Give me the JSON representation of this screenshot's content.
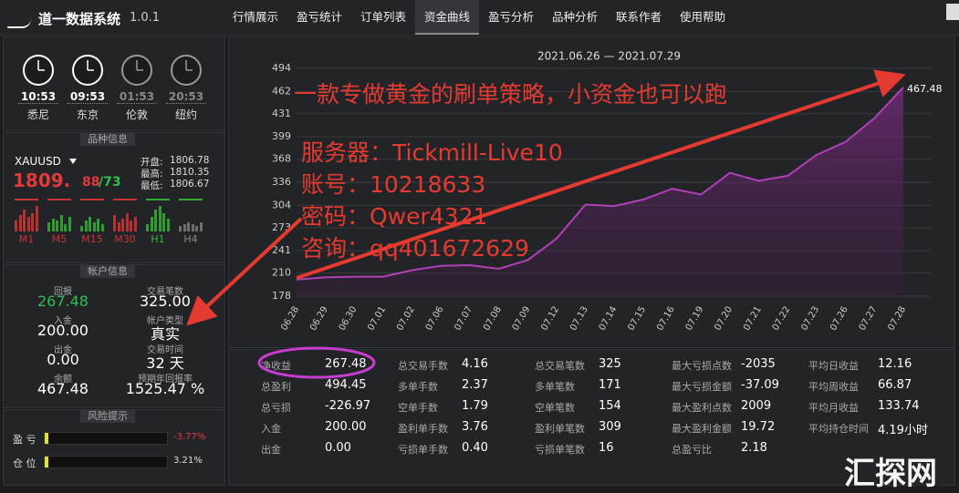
{
  "app": {
    "name": "道一数据系统",
    "version": "1.0.1"
  },
  "nav": [
    {
      "label": "行情展示"
    },
    {
      "label": "盈亏统计"
    },
    {
      "label": "订单列表"
    },
    {
      "label": "资金曲线",
      "active": true
    },
    {
      "label": "盈亏分析"
    },
    {
      "label": "品种分析"
    },
    {
      "label": "联系作者"
    },
    {
      "label": "使用帮助"
    }
  ],
  "clocks": [
    {
      "time": "10:53",
      "city": "悉尼"
    },
    {
      "time": "09:53",
      "city": "东京"
    },
    {
      "time": "01:53",
      "city": "伦敦"
    },
    {
      "time": "20:53",
      "city": "纽约"
    }
  ],
  "symbol": {
    "title": "品种信息",
    "name": "XAUUSD",
    "price_main": "1809.",
    "price_sub": "88",
    "price_ask": "/73",
    "quotes": [
      {
        "label": "开盘:",
        "value": "1806.78"
      },
      {
        "label": "最高:",
        "value": "1810.35"
      },
      {
        "label": "最低:",
        "value": "1806.67"
      }
    ],
    "timeframes": [
      "M1",
      "M5",
      "M15",
      "M30",
      "H1",
      "H4"
    ]
  },
  "account": {
    "title": "帐户信息",
    "items": [
      {
        "label": "回报",
        "value": "267.48"
      },
      {
        "label": "交易笔数",
        "value": "325.00"
      },
      {
        "label": "入金",
        "value": "200.00"
      },
      {
        "label": "帐户类型",
        "value": "真实"
      },
      {
        "label": "出金",
        "value": "0.00"
      },
      {
        "label": "交易时间",
        "value": "32 天"
      },
      {
        "label": "余额",
        "value": "467.48"
      },
      {
        "label": "预期年回报率",
        "value": "1525.47 %"
      }
    ]
  },
  "risk": {
    "title": "风险提示",
    "items": [
      {
        "label": "盈 亏",
        "value": "-3.77%"
      },
      {
        "label": "仓 位",
        "value": "3.21%"
      }
    ]
  },
  "equity_chart": {
    "type": "area",
    "title": "2021.06.26 — 2021.07.29",
    "categories": [
      "06.28",
      "06.29",
      "06.30",
      "07.01",
      "07.02",
      "07.06",
      "07.07",
      "07.08",
      "07.09",
      "07.12",
      "07.13",
      "07.14",
      "07.15",
      "07.16",
      "07.19",
      "07.20",
      "07.21",
      "07.22",
      "07.23",
      "07.26",
      "07.27",
      "07.28"
    ],
    "values": [
      201,
      204,
      205,
      205,
      214,
      220,
      221,
      216,
      228,
      258,
      305,
      303,
      312,
      327,
      319,
      349,
      338,
      345,
      374,
      392,
      425,
      467.48
    ],
    "color": "#b040b8",
    "ylim": [
      178,
      494
    ],
    "yticks": [
      178,
      210,
      241,
      273,
      304,
      336,
      368,
      399,
      431,
      462,
      494
    ],
    "grid": true
  },
  "stats": [
    [
      {
        "label": "净收益",
        "value": "267.48"
      },
      {
        "label": "总盈利",
        "value": "494.45"
      },
      {
        "label": "总亏损",
        "value": "-226.97"
      },
      {
        "label": "入金",
        "value": "200.00"
      },
      {
        "label": "出金",
        "value": "0.00"
      }
    ],
    [
      {
        "label": "总交易手数",
        "value": "4.16"
      },
      {
        "label": "多单手数",
        "value": "2.37"
      },
      {
        "label": "空单手数",
        "value": "1.79"
      },
      {
        "label": "盈利单手数",
        "value": "3.76"
      },
      {
        "label": "亏损单手数",
        "value": "0.40"
      }
    ],
    [
      {
        "label": "总交易笔数",
        "value": "325"
      },
      {
        "label": "多单笔数",
        "value": "171"
      },
      {
        "label": "空单笔数",
        "value": "154"
      },
      {
        "label": "盈利单笔数",
        "value": "309"
      },
      {
        "label": "亏损单笔数",
        "value": "16"
      }
    ],
    [
      {
        "label": "最大亏损点数",
        "value": "-2035"
      },
      {
        "label": "最大亏损金额",
        "value": "-37.09"
      },
      {
        "label": "最大盈利点数",
        "value": "2009"
      },
      {
        "label": "最大盈利金额",
        "value": "19.72"
      },
      {
        "label": "总盈亏比",
        "value": "2.18"
      }
    ],
    [
      {
        "label": "平均日收益",
        "value": "12.16"
      },
      {
        "label": "平均周收益",
        "value": "66.87"
      },
      {
        "label": "平均月收益",
        "value": "133.74"
      },
      {
        "label": "平均持仓时间",
        "value": "4.19小时"
      }
    ]
  ],
  "annotations": {
    "headline": "一款专做黄金的刷单策略，小资金也可以跑",
    "lines": [
      "服务器：Tickmill-Live10",
      "账号：10218633",
      "密码：Qwer4321",
      "咨询：qq401672629"
    ]
  },
  "watermark": "汇探网"
}
